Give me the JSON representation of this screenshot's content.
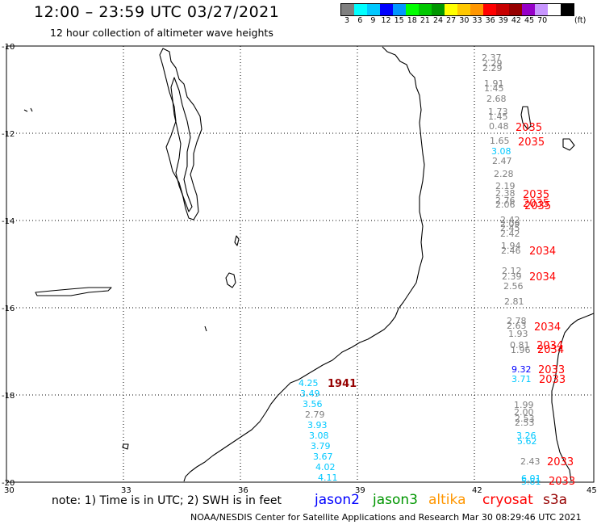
{
  "header": {
    "title": "12:00 – 23:59 UTC 03/27/2021",
    "subtitle": "12 hour collection of altimeter wave heights"
  },
  "colorbar": {
    "colors": [
      "#7f7f7f",
      "#00ffff",
      "#00c8ff",
      "#0000ff",
      "#0096ff",
      "#00ff00",
      "#00c800",
      "#009600",
      "#ffff00",
      "#ffc800",
      "#ff9600",
      "#ff0000",
      "#c80000",
      "#960000",
      "#9600c8",
      "#c896ff",
      "#ffffff",
      "#000000"
    ],
    "ticks": [
      "3",
      "6",
      "9",
      "12",
      "15",
      "18",
      "21",
      "24",
      "27",
      "30",
      "33",
      "36",
      "39",
      "42",
      "45",
      "70"
    ],
    "unit": "(ft)"
  },
  "map": {
    "lat_labels": [
      "-10",
      "-12",
      "-14",
      "-16",
      "-18",
      "-20"
    ],
    "lon_labels": [
      "30",
      "33",
      "36",
      "39",
      "42",
      "45"
    ],
    "coastline_color": "#000000",
    "grid_color": "#000000"
  },
  "observations": {
    "east_track": [
      {
        "v": "2.37",
        "c": "#7f7f7f"
      },
      {
        "v": "2.29",
        "c": "#7f7f7f"
      },
      {
        "v": "2.29",
        "c": "#7f7f7f"
      },
      {
        "v": "1.91",
        "c": "#7f7f7f"
      },
      {
        "v": "1.45",
        "c": "#7f7f7f"
      },
      {
        "v": "2.68",
        "c": "#7f7f7f"
      },
      {
        "v": "1.73",
        "c": "#7f7f7f"
      },
      {
        "v": "1.45",
        "c": "#7f7f7f"
      },
      {
        "v": "0.48",
        "c": "#7f7f7f"
      },
      {
        "v": "1.65",
        "c": "#7f7f7f"
      },
      {
        "v": "3.08",
        "c": "#00c8ff"
      },
      {
        "v": "2.47",
        "c": "#7f7f7f"
      },
      {
        "v": "2.28",
        "c": "#7f7f7f"
      },
      {
        "v": "2.19",
        "c": "#7f7f7f"
      },
      {
        "v": "2.38",
        "c": "#7f7f7f"
      },
      {
        "v": "2.76",
        "c": "#7f7f7f"
      },
      {
        "v": "2.06",
        "c": "#7f7f7f"
      },
      {
        "v": "2.42",
        "c": "#7f7f7f"
      },
      {
        "v": "2.09",
        "c": "#7f7f7f"
      },
      {
        "v": "2.45",
        "c": "#7f7f7f"
      },
      {
        "v": "2.42",
        "c": "#7f7f7f"
      },
      {
        "v": "1.94",
        "c": "#7f7f7f"
      },
      {
        "v": "2.46",
        "c": "#7f7f7f"
      },
      {
        "v": "2.12",
        "c": "#7f7f7f"
      },
      {
        "v": "2.39",
        "c": "#7f7f7f"
      },
      {
        "v": "2.56",
        "c": "#7f7f7f"
      },
      {
        "v": "2.81",
        "c": "#7f7f7f"
      },
      {
        "v": "2.78",
        "c": "#7f7f7f"
      },
      {
        "v": "2.63",
        "c": "#7f7f7f"
      },
      {
        "v": "1.93",
        "c": "#7f7f7f"
      },
      {
        "v": "0.81",
        "c": "#7f7f7f"
      },
      {
        "v": "1.96",
        "c": "#7f7f7f"
      },
      {
        "v": "9.32",
        "c": "#0000ff"
      },
      {
        "v": "3.71",
        "c": "#00c8ff"
      },
      {
        "v": "1.99",
        "c": "#7f7f7f"
      },
      {
        "v": "2.00",
        "c": "#7f7f7f"
      },
      {
        "v": "2.53",
        "c": "#7f7f7f"
      },
      {
        "v": "2.53",
        "c": "#7f7f7f"
      },
      {
        "v": "3.26",
        "c": "#00c8ff"
      },
      {
        "v": "5.62",
        "c": "#00c8ff"
      },
      {
        "v": "2.43",
        "c": "#7f7f7f"
      },
      {
        "v": "6.01",
        "c": "#00c8ff"
      },
      {
        "v": "5.81",
        "c": "#00c8ff"
      }
    ],
    "east_passes": [
      {
        "v": "2035",
        "c": "#ff0000"
      },
      {
        "v": "2035",
        "c": "#ff0000"
      },
      {
        "v": "2035",
        "c": "#ff0000"
      },
      {
        "v": "2035",
        "c": "#ff0000"
      },
      {
        "v": "2035",
        "c": "#ff0000"
      },
      {
        "v": "2034",
        "c": "#ff0000"
      },
      {
        "v": "2034",
        "c": "#ff0000"
      },
      {
        "v": "2034",
        "c": "#ff0000"
      },
      {
        "v": "2034",
        "c": "#ff0000"
      },
      {
        "v": "2034",
        "c": "#ff0000"
      },
      {
        "v": "2033",
        "c": "#ff0000"
      },
      {
        "v": "2033",
        "c": "#ff0000"
      },
      {
        "v": "2033",
        "c": "#ff0000"
      },
      {
        "v": "2033",
        "c": "#ff0000"
      }
    ],
    "west_track": [
      {
        "v": "4.25",
        "c": "#00c8ff"
      },
      {
        "v": "3.49",
        "c": "#00c8ff"
      },
      {
        "v": "3.56",
        "c": "#00c8ff"
      },
      {
        "v": "2.79",
        "c": "#7f7f7f"
      },
      {
        "v": "3.93",
        "c": "#00c8ff"
      },
      {
        "v": "3.08",
        "c": "#00c8ff"
      },
      {
        "v": "3.79",
        "c": "#00c8ff"
      },
      {
        "v": "3.67",
        "c": "#00c8ff"
      },
      {
        "v": "4.02",
        "c": "#00c8ff"
      },
      {
        "v": "4.11",
        "c": "#00c8ff"
      }
    ],
    "west_pass": {
      "v": "1941",
      "c": "#960000"
    }
  },
  "footer": {
    "note": "note:  1) Time is in UTC;  2) SWH is in feet",
    "satellites": [
      {
        "name": "jason2",
        "color": "#0000ff"
      },
      {
        "name": "jason3",
        "color": "#009600"
      },
      {
        "name": "altika",
        "color": "#ff9600"
      },
      {
        "name": "cryosat",
        "color": "#ff0000"
      },
      {
        "name": "s3a",
        "color": "#960000"
      }
    ],
    "credit": "NOAA/NESDIS Center for Satellite Applications and Research    Mar 30 08:29:46 UTC 2021"
  }
}
